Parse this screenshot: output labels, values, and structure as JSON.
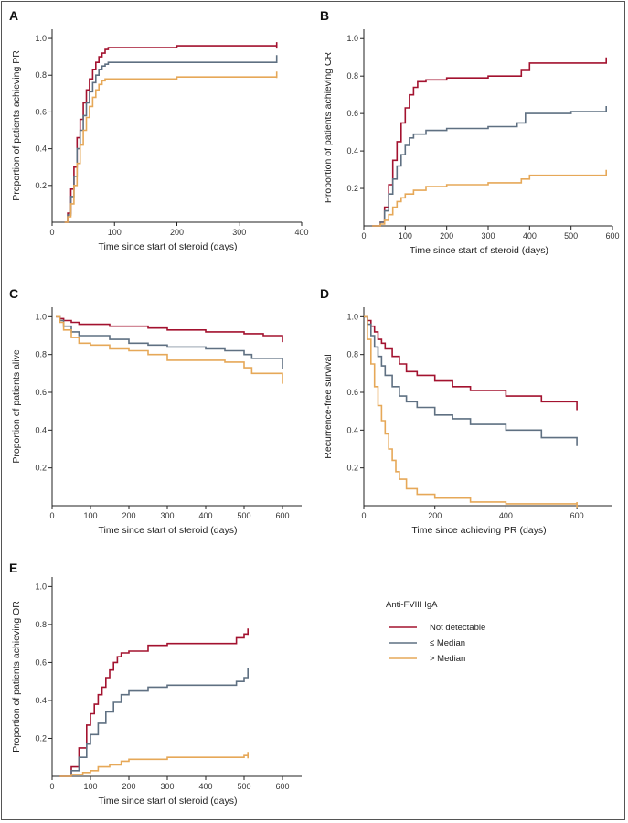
{
  "legend": {
    "title": "Anti-FVIII IgA",
    "items": [
      {
        "label": "Not detectable",
        "color": "#a3122f"
      },
      {
        "label": "≤ Median",
        "color": "#5f7082"
      },
      {
        "label": "> Median",
        "color": "#e6a858"
      }
    ]
  },
  "chart_data": [
    {
      "panel": "A",
      "type": "line",
      "xlabel": "Time since start of steroid (days)",
      "ylabel": "Proportion of patients achieving PR",
      "xlim": [
        0,
        400
      ],
      "ylim": [
        0,
        1.05
      ],
      "xticks": [
        0,
        100,
        200,
        300,
        400
      ],
      "yticks": [
        0.2,
        0.4,
        0.6,
        0.8,
        1.0
      ],
      "series": [
        {
          "color": "#a3122f",
          "x": [
            20,
            25,
            30,
            35,
            40,
            45,
            50,
            55,
            60,
            65,
            70,
            75,
            80,
            85,
            90,
            100,
            200,
            360
          ],
          "y": [
            0,
            0.05,
            0.18,
            0.3,
            0.46,
            0.56,
            0.65,
            0.72,
            0.78,
            0.83,
            0.87,
            0.9,
            0.92,
            0.94,
            0.95,
            0.95,
            0.96,
            0.96
          ]
        },
        {
          "color": "#5f7082",
          "x": [
            20,
            25,
            30,
            35,
            40,
            45,
            50,
            55,
            60,
            65,
            70,
            75,
            80,
            85,
            90,
            100,
            200,
            360
          ],
          "y": [
            0,
            0.04,
            0.14,
            0.25,
            0.4,
            0.5,
            0.58,
            0.65,
            0.71,
            0.76,
            0.8,
            0.83,
            0.85,
            0.86,
            0.87,
            0.87,
            0.87,
            0.89
          ]
        },
        {
          "color": "#e6a858",
          "x": [
            20,
            25,
            30,
            35,
            40,
            45,
            50,
            55,
            60,
            65,
            70,
            75,
            80,
            85,
            90,
            100,
            200,
            360
          ],
          "y": [
            0,
            0.03,
            0.1,
            0.2,
            0.32,
            0.42,
            0.5,
            0.57,
            0.63,
            0.68,
            0.72,
            0.75,
            0.77,
            0.78,
            0.78,
            0.78,
            0.79,
            0.8
          ]
        }
      ]
    },
    {
      "panel": "B",
      "type": "line",
      "xlabel": "Time since start of steroid (days)",
      "ylabel": "Proportion of patients achieving CR",
      "xlim": [
        0,
        600
      ],
      "ylim": [
        0,
        1.05
      ],
      "xticks": [
        0,
        100,
        200,
        300,
        400,
        500,
        600
      ],
      "yticks": [
        0.2,
        0.4,
        0.6,
        0.8,
        1.0
      ],
      "series": [
        {
          "color": "#a3122f",
          "x": [
            20,
            40,
            50,
            60,
            70,
            80,
            90,
            100,
            110,
            120,
            130,
            150,
            200,
            300,
            380,
            400,
            500,
            585
          ],
          "y": [
            0,
            0.02,
            0.1,
            0.22,
            0.35,
            0.45,
            0.55,
            0.63,
            0.7,
            0.74,
            0.77,
            0.78,
            0.79,
            0.8,
            0.83,
            0.87,
            0.87,
            0.88
          ]
        },
        {
          "color": "#5f7082",
          "x": [
            20,
            40,
            50,
            60,
            70,
            80,
            90,
            100,
            110,
            120,
            150,
            200,
            300,
            370,
            390,
            500,
            585
          ],
          "y": [
            0,
            0.02,
            0.08,
            0.17,
            0.25,
            0.32,
            0.38,
            0.43,
            0.47,
            0.49,
            0.51,
            0.52,
            0.53,
            0.55,
            0.6,
            0.61,
            0.62
          ]
        },
        {
          "color": "#e6a858",
          "x": [
            20,
            40,
            50,
            60,
            70,
            80,
            90,
            100,
            120,
            150,
            200,
            300,
            380,
            400,
            500,
            585
          ],
          "y": [
            0,
            0.01,
            0.03,
            0.06,
            0.1,
            0.13,
            0.15,
            0.17,
            0.19,
            0.21,
            0.22,
            0.23,
            0.25,
            0.27,
            0.27,
            0.28
          ]
        }
      ]
    },
    {
      "panel": "C",
      "type": "line",
      "xlabel": "Time since start of steroid (days)",
      "ylabel": "Proportion of patients alive",
      "xlim": [
        0,
        650
      ],
      "ylim": [
        0,
        1.05
      ],
      "xticks": [
        0,
        100,
        200,
        300,
        400,
        500,
        600
      ],
      "yticks": [
        0.2,
        0.4,
        0.6,
        0.8,
        1.0
      ],
      "series": [
        {
          "color": "#a3122f",
          "x": [
            10,
            20,
            30,
            50,
            70,
            100,
            150,
            200,
            250,
            300,
            400,
            500,
            550,
            600
          ],
          "y": [
            1.0,
            0.99,
            0.98,
            0.97,
            0.96,
            0.96,
            0.95,
            0.95,
            0.94,
            0.93,
            0.92,
            0.91,
            0.9,
            0.88
          ]
        },
        {
          "color": "#5f7082",
          "x": [
            10,
            20,
            30,
            50,
            70,
            100,
            150,
            200,
            250,
            300,
            400,
            450,
            500,
            520,
            600
          ],
          "y": [
            1.0,
            0.98,
            0.95,
            0.92,
            0.9,
            0.9,
            0.88,
            0.86,
            0.85,
            0.84,
            0.83,
            0.82,
            0.8,
            0.78,
            0.74
          ]
        },
        {
          "color": "#e6a858",
          "x": [
            10,
            20,
            30,
            50,
            70,
            100,
            150,
            200,
            250,
            300,
            400,
            450,
            500,
            520,
            600
          ],
          "y": [
            1.0,
            0.97,
            0.93,
            0.89,
            0.86,
            0.85,
            0.83,
            0.82,
            0.8,
            0.77,
            0.77,
            0.76,
            0.73,
            0.7,
            0.66
          ]
        }
      ]
    },
    {
      "panel": "D",
      "type": "line",
      "xlabel": "Time since achieving PR (days)",
      "ylabel": "Recurrence-free survival",
      "xlim": [
        0,
        700
      ],
      "ylim": [
        0,
        1.05
      ],
      "xticks": [
        0,
        200,
        400,
        600
      ],
      "yticks": [
        0.2,
        0.4,
        0.6,
        0.8,
        1.0
      ],
      "series": [
        {
          "color": "#a3122f",
          "x": [
            0,
            10,
            20,
            30,
            40,
            50,
            60,
            80,
            100,
            120,
            150,
            200,
            250,
            300,
            400,
            500,
            600
          ],
          "y": [
            1.0,
            0.98,
            0.95,
            0.92,
            0.88,
            0.86,
            0.83,
            0.79,
            0.75,
            0.71,
            0.69,
            0.66,
            0.63,
            0.61,
            0.58,
            0.55,
            0.52
          ]
        },
        {
          "color": "#5f7082",
          "x": [
            0,
            10,
            20,
            30,
            40,
            50,
            60,
            80,
            100,
            120,
            150,
            200,
            250,
            300,
            400,
            500,
            600
          ],
          "y": [
            1.0,
            0.96,
            0.9,
            0.84,
            0.79,
            0.74,
            0.69,
            0.63,
            0.58,
            0.55,
            0.52,
            0.48,
            0.46,
            0.43,
            0.4,
            0.36,
            0.33
          ]
        },
        {
          "color": "#e6a858",
          "x": [
            0,
            10,
            20,
            30,
            40,
            50,
            60,
            70,
            80,
            90,
            100,
            120,
            150,
            200,
            300,
            400,
            500,
            600
          ],
          "y": [
            1.0,
            0.88,
            0.75,
            0.63,
            0.53,
            0.45,
            0.38,
            0.3,
            0.24,
            0.18,
            0.14,
            0.09,
            0.06,
            0.04,
            0.02,
            0.01,
            0.01,
            0.0
          ]
        }
      ]
    },
    {
      "panel": "E",
      "type": "line",
      "xlabel": "Time since start of steroid (days)",
      "ylabel": "Proportion of patients achieving OR",
      "xlim": [
        0,
        650
      ],
      "ylim": [
        0,
        1.05
      ],
      "xticks": [
        0,
        100,
        200,
        300,
        400,
        500,
        600
      ],
      "yticks": [
        0.2,
        0.4,
        0.6,
        0.8,
        1.0
      ],
      "series": [
        {
          "color": "#a3122f",
          "x": [
            20,
            50,
            70,
            90,
            100,
            110,
            120,
            130,
            140,
            150,
            160,
            170,
            180,
            200,
            250,
            300,
            400,
            480,
            500,
            510
          ],
          "y": [
            0,
            0.05,
            0.15,
            0.27,
            0.33,
            0.38,
            0.43,
            0.47,
            0.52,
            0.56,
            0.6,
            0.63,
            0.65,
            0.66,
            0.69,
            0.7,
            0.7,
            0.73,
            0.75,
            0.76
          ]
        },
        {
          "color": "#5f7082",
          "x": [
            20,
            50,
            70,
            90,
            100,
            120,
            140,
            160,
            180,
            200,
            250,
            300,
            400,
            480,
            500,
            510
          ],
          "y": [
            0,
            0.03,
            0.1,
            0.17,
            0.22,
            0.28,
            0.34,
            0.39,
            0.43,
            0.45,
            0.47,
            0.48,
            0.48,
            0.5,
            0.52,
            0.55
          ]
        },
        {
          "color": "#e6a858",
          "x": [
            20,
            50,
            80,
            100,
            120,
            150,
            180,
            200,
            250,
            300,
            400,
            480,
            500,
            510
          ],
          "y": [
            0,
            0.01,
            0.02,
            0.03,
            0.05,
            0.06,
            0.08,
            0.09,
            0.09,
            0.1,
            0.1,
            0.1,
            0.11,
            0.11
          ]
        }
      ]
    }
  ]
}
